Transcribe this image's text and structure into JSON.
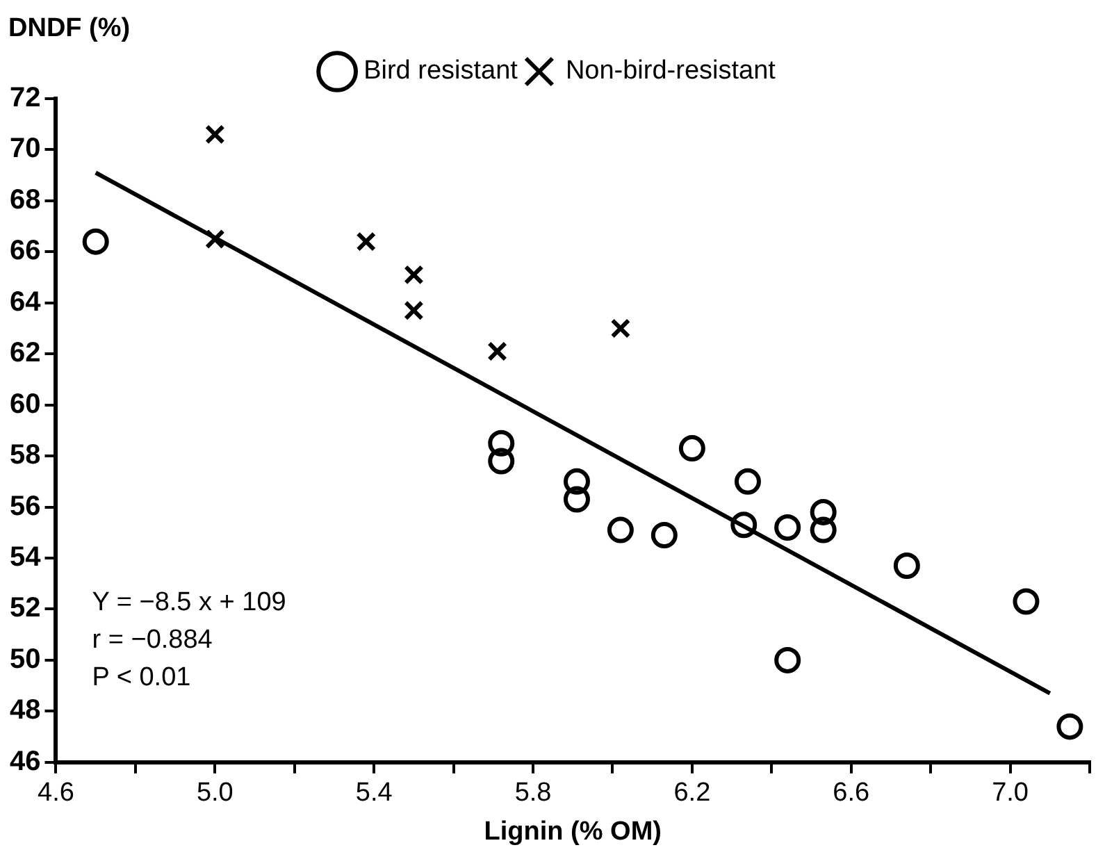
{
  "chart_data": {
    "type": "scatter",
    "xlabel": "Lignin (% OM)",
    "ylabel": "DNDF (%)",
    "xlim": [
      4.6,
      7.2
    ],
    "ylim": [
      46,
      72
    ],
    "xticks": [
      {
        "value": 4.6,
        "label": "4.6"
      },
      {
        "value": 4.8,
        "label": null
      },
      {
        "value": 5.0,
        "label": "5.0"
      },
      {
        "value": 5.2,
        "label": null
      },
      {
        "value": 5.4,
        "label": "5.4"
      },
      {
        "value": 5.6,
        "label": null
      },
      {
        "value": 5.8,
        "label": "5.8"
      },
      {
        "value": 6.0,
        "label": null
      },
      {
        "value": 6.2,
        "label": "6.2"
      },
      {
        "value": 6.4,
        "label": null
      },
      {
        "value": 6.6,
        "label": "6.6"
      },
      {
        "value": 6.8,
        "label": null
      },
      {
        "value": 7.0,
        "label": "7.0"
      },
      {
        "value": 7.2,
        "label": null
      }
    ],
    "yticks": [
      46,
      48,
      50,
      52,
      54,
      56,
      58,
      60,
      62,
      64,
      66,
      68,
      70,
      72
    ],
    "grid": false,
    "legend": "top",
    "series": [
      {
        "name": "Bird resistant",
        "color": "#000000",
        "marker": "circle",
        "x": [
          4.7,
          5.72,
          5.72,
          5.91,
          5.91,
          6.02,
          6.13,
          6.2,
          6.34,
          6.33,
          6.44,
          6.44,
          6.53,
          6.53,
          6.74,
          7.04,
          7.15
        ],
        "values": [
          66.4,
          58.5,
          57.8,
          57.0,
          56.3,
          55.1,
          54.9,
          58.3,
          57.0,
          55.3,
          55.2,
          50.0,
          55.8,
          55.1,
          53.7,
          52.3,
          47.4
        ]
      },
      {
        "name": "Non-bird-resistant",
        "color": "#000000",
        "marker": "cross",
        "x": [
          5.0,
          5.0,
          5.38,
          5.5,
          5.5,
          5.71,
          6.02
        ],
        "values": [
          70.6,
          66.5,
          66.4,
          65.1,
          63.7,
          62.1,
          63.0
        ]
      },
      {
        "type": "line",
        "color": "#000000",
        "marker": "none",
        "line_style": "solid",
        "x": [
          4.7,
          7.1
        ],
        "values": [
          69.1,
          48.7
        ]
      }
    ],
    "annotations": [
      "Y = −8.5 x + 109",
      "r = −0.884",
      "P < 0.01"
    ]
  }
}
